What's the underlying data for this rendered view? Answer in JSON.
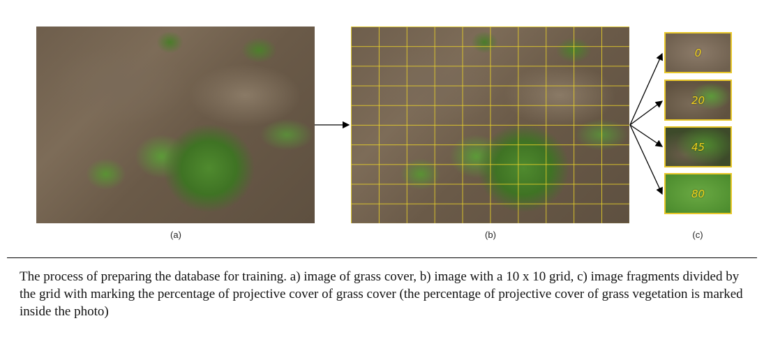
{
  "panels": {
    "a_label": "(a)",
    "b_label": "(b)",
    "c_label": "(c)"
  },
  "grid": {
    "rows": 10,
    "cols": 10,
    "color": "#e8c72a"
  },
  "fragments": [
    {
      "value": "0"
    },
    {
      "value": "20"
    },
    {
      "value": "45"
    },
    {
      "value": "80"
    }
  ],
  "caption": "The process of preparing the database for training. a) image of grass cover, b) image with a 10 x 10 grid, c) image fragments divided by the grid with marking the percentage of projective cover of grass cover (the percentage of projective cover of grass vegetation is marked inside the photo)"
}
